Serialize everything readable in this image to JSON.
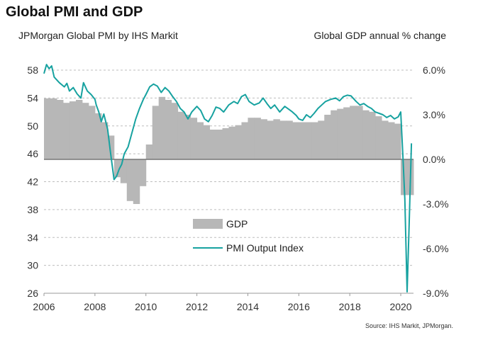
{
  "header": {
    "title": "Global PMI and GDP",
    "left_axis_title": "JPMorgan Global PMI by IHS Markit",
    "right_axis_title": "Global GDP annual % change",
    "source": "Source: IHS Markit, JPMorgan."
  },
  "chart_data": {
    "type": "line",
    "title": "Global PMI and GDP",
    "xlabel": "",
    "ylabel": "JPMorgan Global PMI by IHS Markit",
    "y2label": "Global GDP annual % change",
    "xlim": [
      2006,
      2020.5
    ],
    "ylim": [
      26,
      60
    ],
    "y2lim": [
      -9,
      6
    ],
    "x_ticks": [
      "2006",
      "2008",
      "2010",
      "2012",
      "2014",
      "2016",
      "2018",
      "2020"
    ],
    "y_ticks": [
      "58",
      "54",
      "50",
      "46",
      "42",
      "38",
      "34",
      "30",
      "26"
    ],
    "y2_ticks": [
      "6.0%",
      "3.0%",
      "0.0%",
      "-3.0%",
      "-6.0%",
      "-9.0%"
    ],
    "grid": true,
    "legend_position": "center-left",
    "legend": [
      "GDP",
      "PMI Output Index"
    ],
    "colors": {
      "gdp": "#b7b7b7",
      "pmi": "#17a2a0",
      "grid": "#bdbdbd",
      "zero_line": "#777777"
    },
    "series": [
      {
        "name": "GDP",
        "kind": "area",
        "axis": "right",
        "x": [
          2006.0,
          2006.25,
          2006.5,
          2006.75,
          2007.0,
          2007.25,
          2007.5,
          2007.75,
          2008.0,
          2008.25,
          2008.5,
          2008.75,
          2009.0,
          2009.25,
          2009.5,
          2009.75,
          2010.0,
          2010.25,
          2010.5,
          2010.75,
          2011.0,
          2011.25,
          2011.5,
          2011.75,
          2012.0,
          2012.25,
          2012.5,
          2012.75,
          2013.0,
          2013.25,
          2013.5,
          2013.75,
          2014.0,
          2014.25,
          2014.5,
          2014.75,
          2015.0,
          2015.25,
          2015.5,
          2015.75,
          2016.0,
          2016.25,
          2016.5,
          2016.75,
          2017.0,
          2017.25,
          2017.5,
          2017.75,
          2018.0,
          2018.25,
          2018.5,
          2018.75,
          2019.0,
          2019.25,
          2019.5,
          2019.75,
          2020.0,
          2020.25
        ],
        "values": [
          4.1,
          4.1,
          4.0,
          3.8,
          3.9,
          4.0,
          3.8,
          3.6,
          3.1,
          2.5,
          1.6,
          -1.2,
          -1.6,
          -2.8,
          -3.0,
          -1.8,
          1.0,
          3.6,
          4.2,
          4.0,
          3.8,
          3.2,
          3.0,
          2.8,
          2.5,
          2.3,
          2.0,
          2.0,
          2.1,
          2.2,
          2.3,
          2.5,
          2.8,
          2.8,
          2.7,
          2.6,
          2.7,
          2.6,
          2.6,
          2.5,
          2.5,
          2.5,
          2.5,
          2.6,
          3.0,
          3.3,
          3.4,
          3.5,
          3.6,
          3.6,
          3.3,
          3.2,
          2.9,
          2.6,
          2.5,
          2.4,
          -2.4,
          -2.4
        ]
      },
      {
        "name": "PMI Output Index",
        "kind": "line",
        "axis": "left",
        "x": [
          2006.0,
          2006.1,
          2006.2,
          2006.3,
          2006.4,
          2006.6,
          2006.8,
          2006.9,
          2007.0,
          2007.15,
          2007.3,
          2007.45,
          2007.55,
          2007.7,
          2007.85,
          2008.0,
          2008.05,
          2008.15,
          2008.25,
          2008.35,
          2008.5,
          2008.6,
          2008.75,
          2008.85,
          2008.95,
          2009.05,
          2009.15,
          2009.3,
          2009.45,
          2009.6,
          2009.75,
          2009.9,
          2010.0,
          2010.15,
          2010.3,
          2010.45,
          2010.6,
          2010.75,
          2010.9,
          2011.05,
          2011.2,
          2011.35,
          2011.5,
          2011.65,
          2011.8,
          2012.0,
          2012.15,
          2012.3,
          2012.45,
          2012.6,
          2012.75,
          2012.9,
          2013.05,
          2013.25,
          2013.45,
          2013.6,
          2013.75,
          2013.9,
          2014.05,
          2014.25,
          2014.45,
          2014.6,
          2014.75,
          2014.9,
          2015.05,
          2015.25,
          2015.45,
          2015.6,
          2015.75,
          2015.9,
          2016.0,
          2016.15,
          2016.3,
          2016.45,
          2016.6,
          2016.75,
          2016.9,
          2017.05,
          2017.25,
          2017.45,
          2017.6,
          2017.75,
          2017.9,
          2018.05,
          2018.25,
          2018.4,
          2018.55,
          2018.7,
          2018.85,
          2019.0,
          2019.15,
          2019.3,
          2019.45,
          2019.6,
          2019.75,
          2019.9,
          2020.0,
          2020.08,
          2020.16,
          2020.25,
          2020.33,
          2020.42
        ],
        "values": [
          57.5,
          58.8,
          58.2,
          58.6,
          57.0,
          56.2,
          55.6,
          56.1,
          55.0,
          55.5,
          54.6,
          54.0,
          56.2,
          55.0,
          54.5,
          53.8,
          53.0,
          52.0,
          50.6,
          51.7,
          49.5,
          46.5,
          42.3,
          42.8,
          43.8,
          44.5,
          46.0,
          47.0,
          49.0,
          51.0,
          52.5,
          53.8,
          54.5,
          55.6,
          56.0,
          55.7,
          54.8,
          55.5,
          55.0,
          54.2,
          53.5,
          52.5,
          52.0,
          51.0,
          52.0,
          52.8,
          52.2,
          51.0,
          50.6,
          51.5,
          52.7,
          52.5,
          52.0,
          53.0,
          53.5,
          53.2,
          54.2,
          54.5,
          53.5,
          53.0,
          53.3,
          54.0,
          53.2,
          52.5,
          53.0,
          52.0,
          52.8,
          52.4,
          52.0,
          51.5,
          51.0,
          50.8,
          51.6,
          51.2,
          51.8,
          52.5,
          53.0,
          53.5,
          53.8,
          54.0,
          53.6,
          54.2,
          54.4,
          54.3,
          53.5,
          53.0,
          53.2,
          52.8,
          52.5,
          52.0,
          51.8,
          51.6,
          51.2,
          51.5,
          51.0,
          51.3,
          52.0,
          46.0,
          39.5,
          26.2,
          36.0,
          47.5
        ]
      }
    ]
  }
}
